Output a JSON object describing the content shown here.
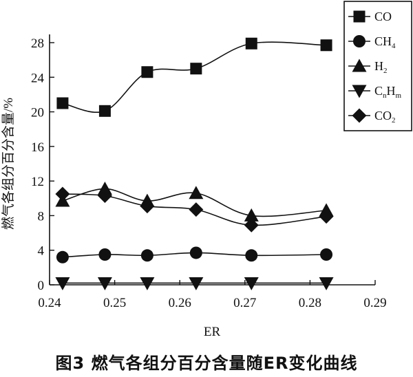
{
  "caption": "图3  燃气各组分百分含量随ER变化曲线",
  "chart_data": {
    "type": "line",
    "xlabel": "ER",
    "ylabel": "燃气各组分百分含量/%",
    "xlim": [
      0.24,
      0.29
    ],
    "ylim": [
      0,
      28
    ],
    "xticks": [
      "0.24",
      "0.25",
      "0.26",
      "0.27",
      "0.28",
      "0.29"
    ],
    "yticks": [
      "0",
      "4",
      "8",
      "12",
      "16",
      "20",
      "24",
      "28"
    ],
    "x": [
      0.242,
      0.2485,
      0.255,
      0.2625,
      0.271,
      0.2825
    ],
    "grid": false,
    "legend_position": "top-right",
    "series": [
      {
        "name": "CO",
        "marker": "square",
        "values": [
          21.0,
          20.1,
          24.6,
          25.0,
          27.9,
          27.7
        ]
      },
      {
        "name": "CH4",
        "name_main": "CH",
        "name_sub": "4",
        "marker": "circle",
        "values": [
          3.2,
          3.5,
          3.4,
          3.7,
          3.4,
          3.5
        ]
      },
      {
        "name": "H2",
        "name_main": "H",
        "name_sub": "2",
        "marker": "triangle-up",
        "values": [
          9.7,
          11.1,
          9.7,
          10.6,
          8.0,
          8.6
        ]
      },
      {
        "name": "CnHm",
        "name_main": "C",
        "name_sub": "n",
        "name_main2": "H",
        "name_sub2": "m",
        "marker": "triangle-down",
        "values": [
          0.2,
          0.2,
          0.2,
          0.2,
          0.2,
          0.2
        ]
      },
      {
        "name": "CO2",
        "name_main": "CO",
        "name_sub": "2",
        "marker": "diamond",
        "values": [
          10.5,
          10.3,
          9.1,
          8.7,
          6.9,
          7.9
        ]
      }
    ]
  }
}
